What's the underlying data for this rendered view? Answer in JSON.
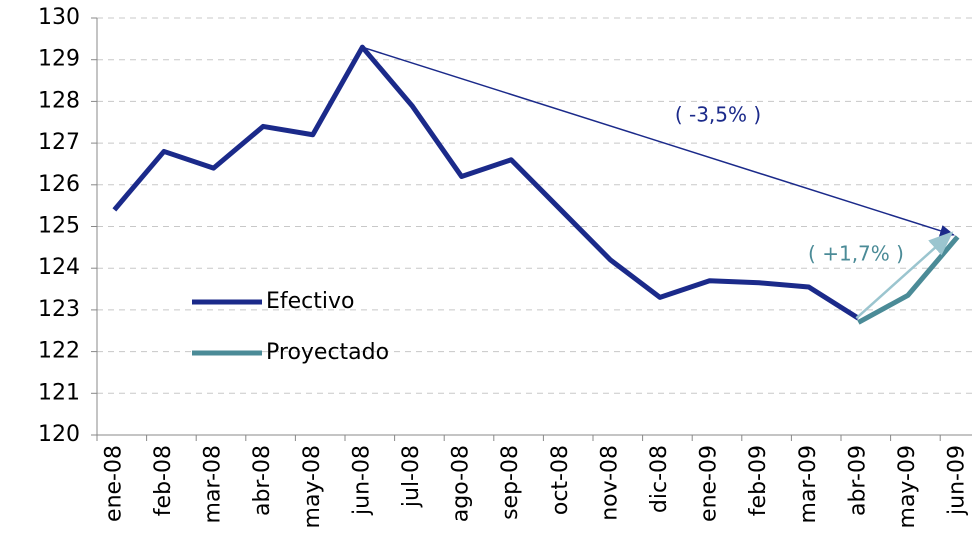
{
  "chart_data": {
    "type": "line",
    "categories": [
      "ene-08",
      "feb-08",
      "mar-08",
      "abr-08",
      "may-08",
      "jun-08",
      "jul-08",
      "ago-08",
      "sep-08",
      "oct-08",
      "nov-08",
      "dic-08",
      "ene-09",
      "feb-09",
      "mar-09",
      "abr-09",
      "may-09",
      "jun-09"
    ],
    "series": [
      {
        "name": "Efectivo",
        "color": "#1b2a8a",
        "values": [
          125.4,
          126.8,
          126.4,
          127.4,
          127.2,
          129.3,
          127.9,
          126.2,
          126.6,
          125.4,
          124.2,
          123.3,
          123.7,
          123.65,
          123.55,
          122.8,
          null,
          null
        ]
      },
      {
        "name": "Proyectado",
        "color": "#4b8b97",
        "values": [
          null,
          null,
          null,
          null,
          null,
          null,
          null,
          null,
          null,
          null,
          null,
          null,
          null,
          null,
          null,
          122.7,
          123.35,
          124.75
        ]
      }
    ],
    "annotations": [
      "( -3,5% )",
      "( +1,7% )"
    ],
    "ylim": [
      120,
      130
    ],
    "yticks": [
      120,
      121,
      122,
      123,
      124,
      125,
      126,
      127,
      128,
      129,
      130
    ],
    "grid": true,
    "legend": "left"
  }
}
